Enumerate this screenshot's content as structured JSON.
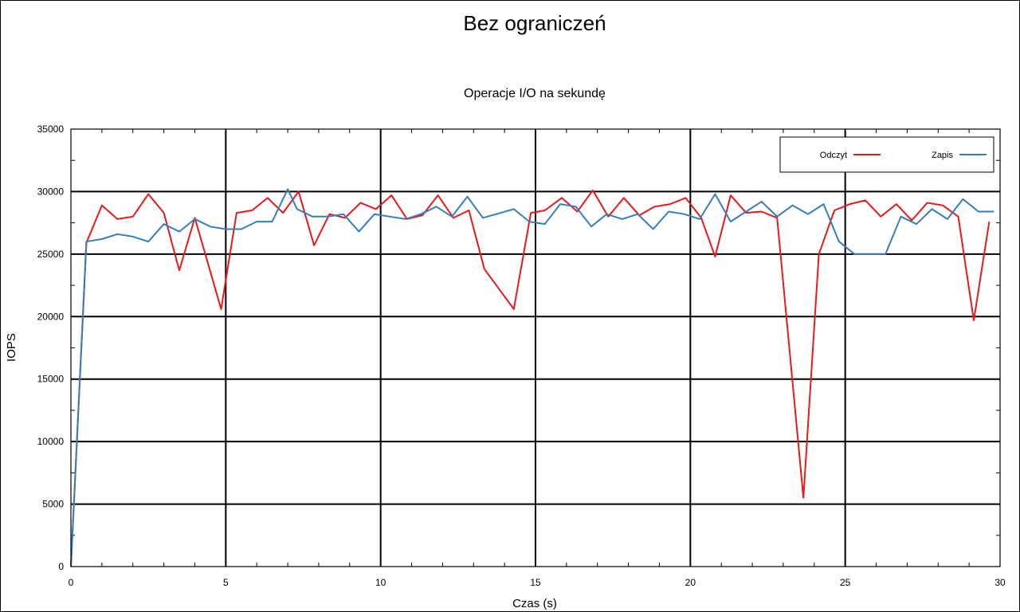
{
  "chart_data": {
    "type": "line",
    "title": "Bez ograniczeń",
    "subtitle": "Operacje I/O na sekundę",
    "xlabel": "Czas (s)",
    "ylabel": "IOPS",
    "xlim": [
      0,
      30
    ],
    "ylim": [
      0,
      35000
    ],
    "x_ticks": [
      0,
      5,
      10,
      15,
      20,
      25,
      30
    ],
    "y_ticks": [
      0,
      5000,
      10000,
      15000,
      20000,
      25000,
      30000,
      35000
    ],
    "x_tick_labels": [
      "0",
      "5",
      "10",
      "15",
      "20",
      "25",
      "30"
    ],
    "y_tick_labels": [
      "0",
      "5000",
      "10000",
      "15000",
      "20000",
      "25000",
      "30000",
      "35000"
    ],
    "grid": true,
    "legend_position": "top-right",
    "series": [
      {
        "name": "Odczyt",
        "color": "#e41a1c",
        "x": [
          0,
          0.5,
          1,
          1.5,
          2,
          2.5,
          3,
          3.5,
          4,
          4.85,
          5.35,
          5.85,
          6.35,
          6.85,
          7.35,
          7.85,
          8.35,
          8.85,
          9.35,
          9.85,
          10.35,
          10.85,
          11.35,
          11.85,
          12.35,
          12.85,
          13.35,
          14.3,
          14.85,
          15.3,
          15.85,
          16.35,
          16.85,
          17.35,
          17.85,
          18.35,
          18.85,
          19.35,
          19.85,
          20.35,
          20.8,
          21.3,
          21.8,
          22.3,
          22.8,
          23.65,
          24.15,
          24.65,
          25.15,
          25.65,
          26.15,
          26.65,
          27.15,
          27.65,
          28.15,
          28.65,
          29.15,
          29.65
        ],
        "y": [
          0,
          25900,
          28900,
          27800,
          28000,
          29800,
          28300,
          23700,
          27900,
          20600,
          28300,
          28500,
          29500,
          28300,
          30000,
          25700,
          28200,
          27900,
          29100,
          28600,
          29700,
          27800,
          28100,
          29700,
          27900,
          28500,
          23800,
          20600,
          28300,
          28500,
          29500,
          28400,
          30100,
          28000,
          29500,
          28100,
          28800,
          29000,
          29500,
          27900,
          24800,
          29700,
          28300,
          28400,
          27900,
          5500,
          25000,
          28500,
          29000,
          29300,
          28000,
          29000,
          27700,
          29100,
          28900,
          28000,
          19700,
          27600
        ]
      },
      {
        "name": "Zapis",
        "color": "#377eb8",
        "x": [
          0,
          0.5,
          1,
          1.5,
          2,
          2.5,
          3,
          3.5,
          4,
          4.5,
          5,
          5.5,
          6,
          6.5,
          7,
          7.3,
          7.8,
          8.3,
          8.8,
          9.3,
          9.8,
          10.3,
          10.8,
          11.3,
          11.8,
          12.3,
          12.8,
          13.3,
          14.3,
          14.8,
          15.3,
          15.8,
          16.3,
          16.8,
          17.3,
          17.8,
          18.3,
          18.8,
          19.3,
          19.8,
          20.3,
          20.8,
          21.3,
          21.8,
          22.3,
          22.8,
          23.3,
          23.8,
          24.3,
          24.8,
          25.3,
          25.8,
          26.3,
          26.8,
          27.3,
          27.8,
          28.3,
          28.8,
          29.3,
          29.8
        ],
        "y": [
          0,
          26000,
          26200,
          26600,
          26400,
          26000,
          27400,
          26800,
          27800,
          27200,
          27000,
          27000,
          27600,
          27600,
          30200,
          28600,
          28000,
          28000,
          28200,
          26800,
          28200,
          28000,
          27800,
          28200,
          28800,
          28000,
          29600,
          27900,
          28600,
          27600,
          27400,
          29000,
          28800,
          27200,
          28200,
          27800,
          28200,
          27000,
          28400,
          28200,
          27800,
          29800,
          27600,
          28400,
          29200,
          28000,
          28900,
          28200,
          29000,
          26000,
          25000,
          25000,
          25000,
          28000,
          27400,
          28600,
          27800,
          29400,
          28400,
          28400
        ]
      }
    ]
  }
}
